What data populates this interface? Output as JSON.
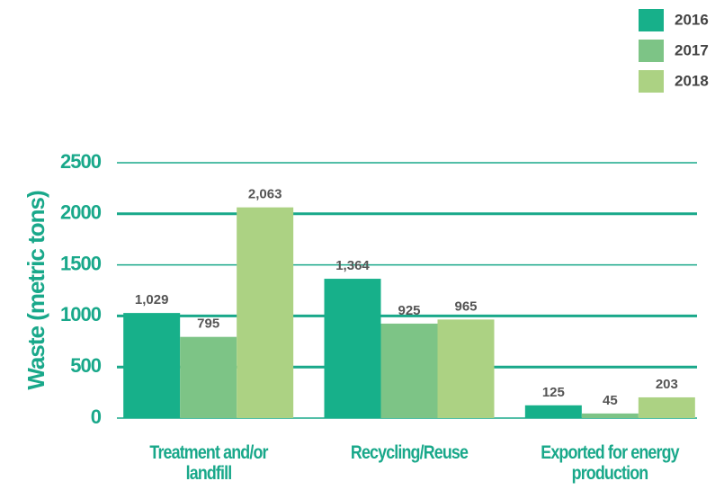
{
  "chart_data": {
    "type": "bar",
    "y_label": "Waste (metric tons)",
    "categories": [
      "Treatment and/or landfill",
      "Recycling/Reuse",
      "Exported for energy production"
    ],
    "series": [
      {
        "name": "2016",
        "color": "#17b08a",
        "values": [
          1029,
          1364,
          125
        ],
        "value_labels": [
          "1,029",
          "1,364",
          "125"
        ]
      },
      {
        "name": "2017",
        "color": "#7dc486",
        "values": [
          795,
          925,
          45
        ],
        "value_labels": [
          "795",
          "925",
          "45"
        ]
      },
      {
        "name": "2018",
        "color": "#acd283",
        "values": [
          2063,
          965,
          203
        ],
        "value_labels": [
          "2,063",
          "965",
          "203"
        ]
      }
    ],
    "ylim": [
      0,
      2500
    ],
    "yticks": [
      0,
      500,
      1000,
      1500,
      2000,
      2500
    ],
    "grid": true,
    "legend": "top-right"
  }
}
